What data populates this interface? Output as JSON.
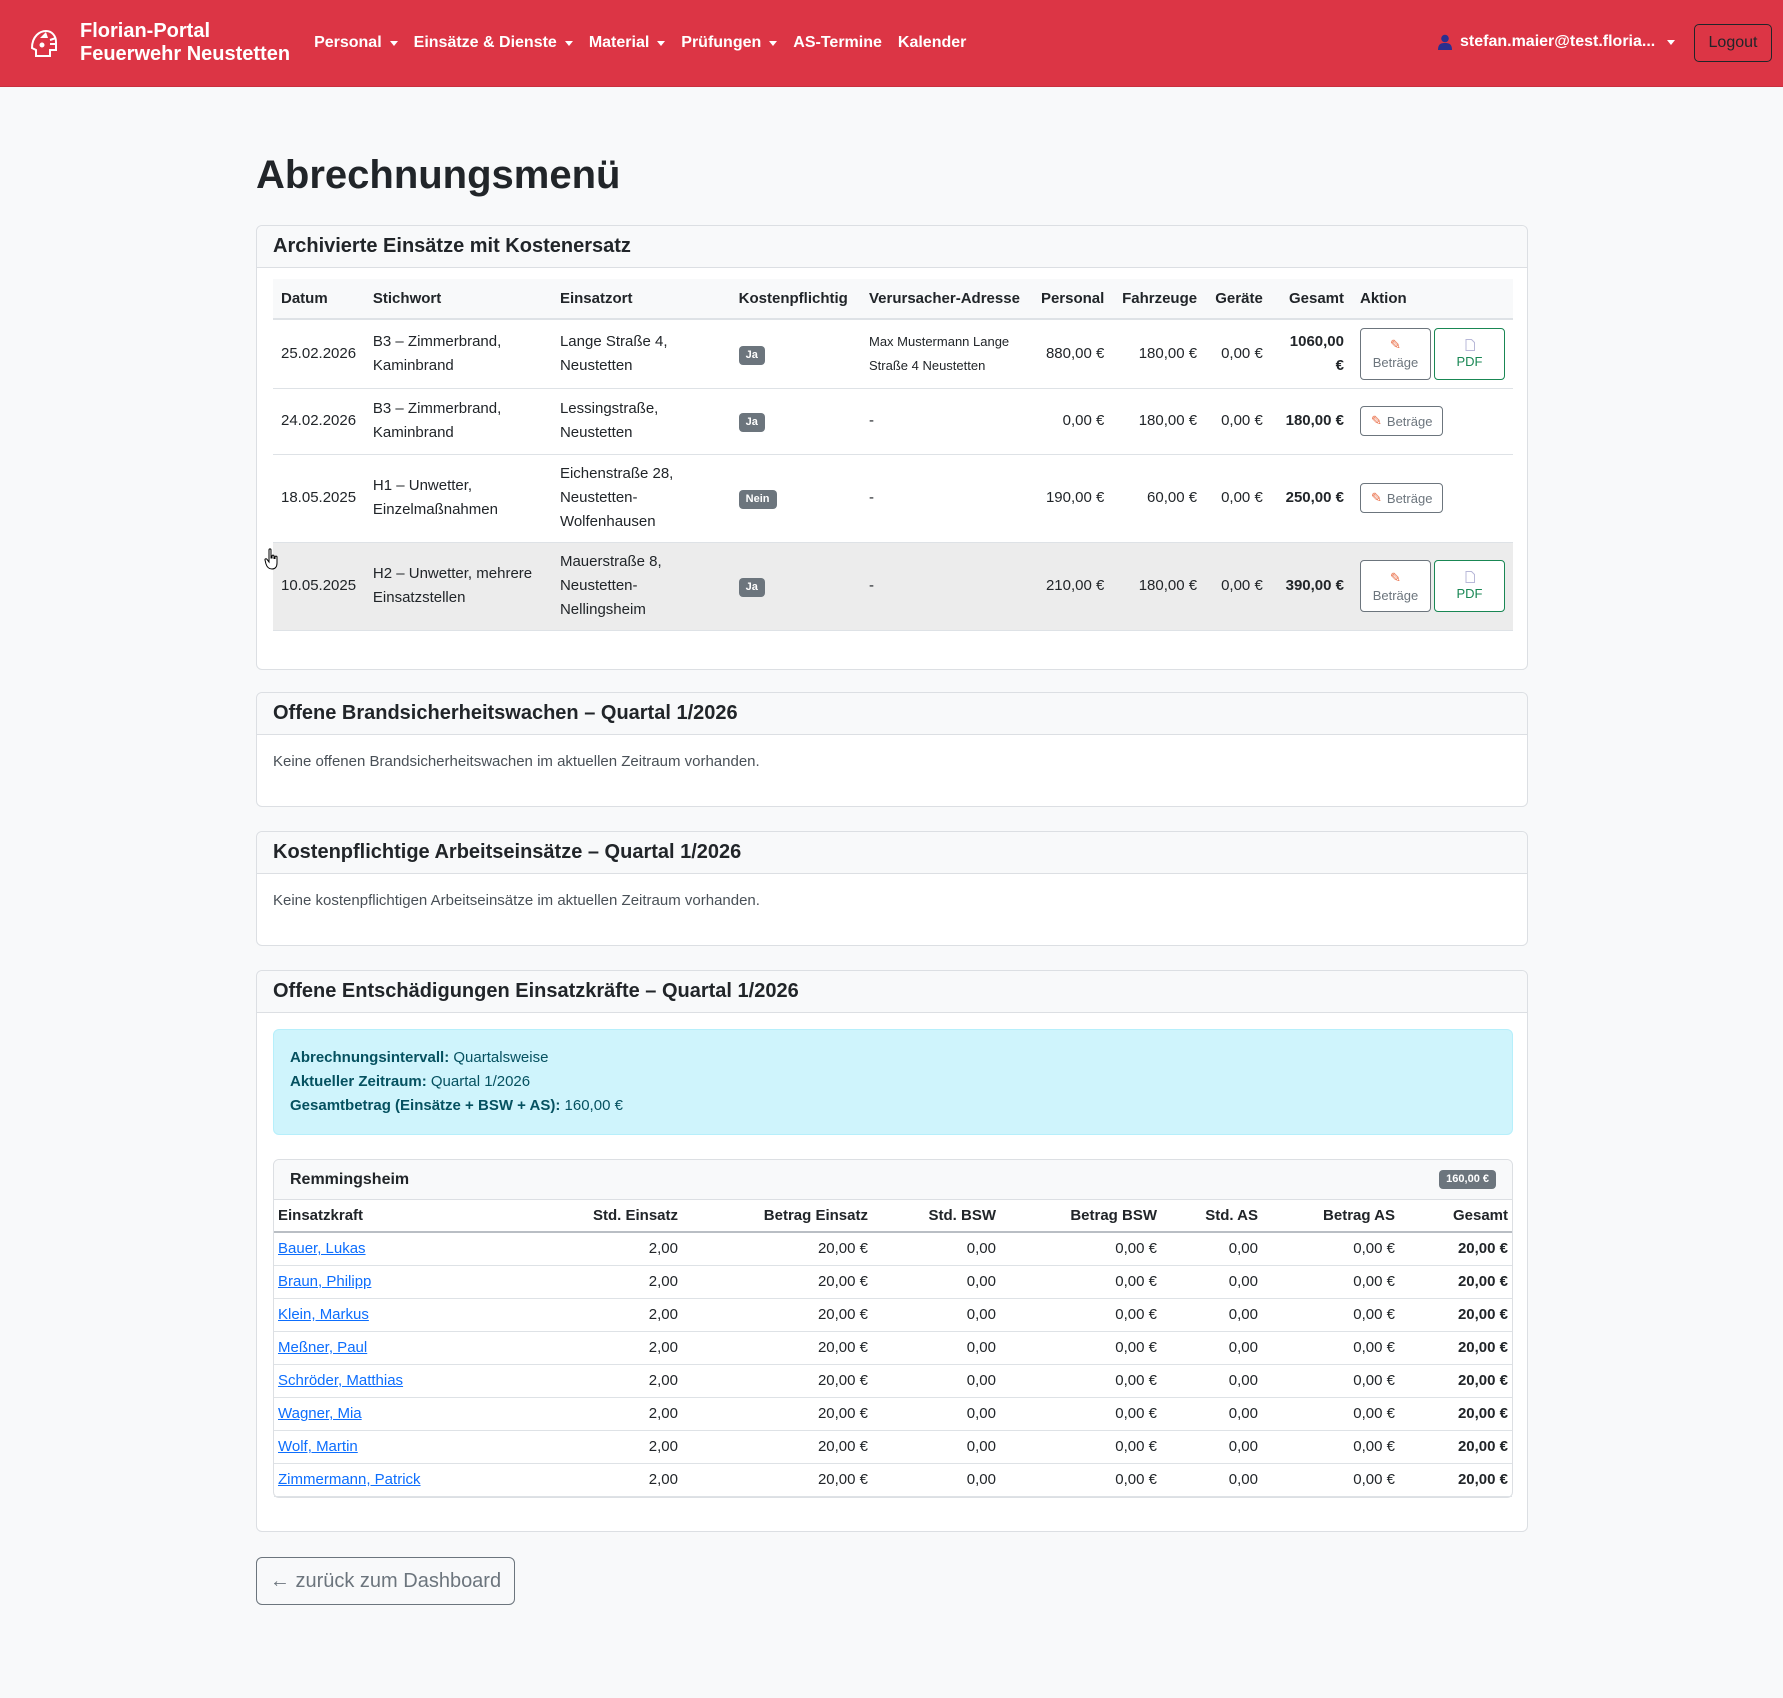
{
  "brand": {
    "line1": "Florian-Portal",
    "line2": "Feuerwehr Neustetten"
  },
  "nav": [
    {
      "label": "Personal",
      "dropdown": true
    },
    {
      "label": "Einsätze & Dienste",
      "dropdown": true
    },
    {
      "label": "Material",
      "dropdown": true
    },
    {
      "label": "Prüfungen",
      "dropdown": true
    },
    {
      "label": "AS-Termine",
      "dropdown": false
    },
    {
      "label": "Kalender",
      "dropdown": false
    }
  ],
  "user": {
    "email": "stefan.maier@test.floria...",
    "logout": "Logout"
  },
  "page_title": "Abrechnungsmenü",
  "archived": {
    "title": "Archivierte Einsätze mit Kostenersatz",
    "headers": [
      "Datum",
      "Stichwort",
      "Einsatzort",
      "Kostenpflichtig",
      "Verursacher-Adresse",
      "Personal",
      "Fahrzeuge",
      "Geräte",
      "Gesamt",
      "Aktion"
    ],
    "rows": [
      {
        "datum": "25.02.2026",
        "stichwort": "B3 – Zimmerbrand, Kaminbrand",
        "ort": "Lange Straße 4, Neustetten",
        "kosten": "Ja",
        "adresse": "Max Mustermann Lange Straße 4 Neustetten",
        "personal": "880,00 €",
        "fahrzeuge": "180,00 €",
        "geraete": "0,00 €",
        "gesamt": "1060,00 €"
      },
      {
        "datum": "24.02.2026",
        "stichwort": "B3 – Zimmerbrand, Kaminbrand",
        "ort": "Lessingstraße, Neustetten",
        "kosten": "Ja",
        "adresse": "-",
        "personal": "0,00 €",
        "fahrzeuge": "180,00 €",
        "geraete": "0,00 €",
        "gesamt": "180,00 €"
      },
      {
        "datum": "18.05.2025",
        "stichwort": "H1 – Unwetter, Einzelmaßnahmen",
        "ort": "Eichenstraße 28, Neustetten-Wolfenhausen",
        "kosten": "Nein",
        "adresse": "-",
        "personal": "190,00 €",
        "fahrzeuge": "60,00 €",
        "geraete": "0,00 €",
        "gesamt": "250,00 €"
      },
      {
        "datum": "10.05.2025",
        "stichwort": "H2 – Unwetter, mehrere Einsatzstellen",
        "ort": "Mauerstraße 8, Neustetten-Nellingsheim",
        "kosten": "Ja",
        "adresse": "-",
        "personal": "210,00 €",
        "fahrzeuge": "180,00 €",
        "geraete": "0,00 €",
        "gesamt": "390,00 €"
      }
    ],
    "btn_betraege": "Beträge",
    "btn_pdf": "PDF"
  },
  "bsw": {
    "title": "Offene Brandsicherheitswachen – Quartal 1/2026",
    "empty": "Keine offenen Brandsicherheitswachen im aktuellen Zeitraum vorhanden."
  },
  "arbeit": {
    "title": "Kostenpflichtige Arbeitseinsätze – Quartal 1/2026",
    "empty": "Keine kostenpflichtigen Arbeitseinsätze im aktuellen Zeitraum vorhanden."
  },
  "entsch": {
    "title": "Offene Entschädigungen Einsatzkräfte – Quartal 1/2026",
    "alert": [
      {
        "label": "Abrechnungsintervall:",
        "value": "Quartalsweise"
      },
      {
        "label": "Aktueller Zeitraum:",
        "value": "Quartal 1/2026"
      },
      {
        "label": "Gesamtbetrag (Einsätze + BSW + AS):",
        "value": "160,00 €"
      }
    ],
    "group": {
      "name": "Remmingsheim",
      "total": "160,00 €"
    },
    "headers": [
      "Einsatzkraft",
      "Std. Einsatz",
      "Betrag Einsatz",
      "Std. BSW",
      "Betrag BSW",
      "Std. AS",
      "Betrag AS",
      "Gesamt"
    ],
    "rows": [
      [
        "Bauer, Lukas",
        "2,00",
        "20,00 €",
        "0,00",
        "0,00 €",
        "0,00",
        "0,00 €",
        "20,00 €"
      ],
      [
        "Braun, Philipp",
        "2,00",
        "20,00 €",
        "0,00",
        "0,00 €",
        "0,00",
        "0,00 €",
        "20,00 €"
      ],
      [
        "Klein, Markus",
        "2,00",
        "20,00 €",
        "0,00",
        "0,00 €",
        "0,00",
        "0,00 €",
        "20,00 €"
      ],
      [
        "Meßner, Paul",
        "2,00",
        "20,00 €",
        "0,00",
        "0,00 €",
        "0,00",
        "0,00 €",
        "20,00 €"
      ],
      [
        "Schröder, Matthias",
        "2,00",
        "20,00 €",
        "0,00",
        "0,00 €",
        "0,00",
        "0,00 €",
        "20,00 €"
      ],
      [
        "Wagner, Mia",
        "2,00",
        "20,00 €",
        "0,00",
        "0,00 €",
        "0,00",
        "0,00 €",
        "20,00 €"
      ],
      [
        "Wolf, Martin",
        "2,00",
        "20,00 €",
        "0,00",
        "0,00 €",
        "0,00",
        "0,00 €",
        "20,00 €"
      ],
      [
        "Zimmermann, Patrick",
        "2,00",
        "20,00 €",
        "0,00",
        "0,00 €",
        "0,00",
        "0,00 €",
        "20,00 €"
      ]
    ]
  },
  "back_button": "← zurück zum Dashboard"
}
